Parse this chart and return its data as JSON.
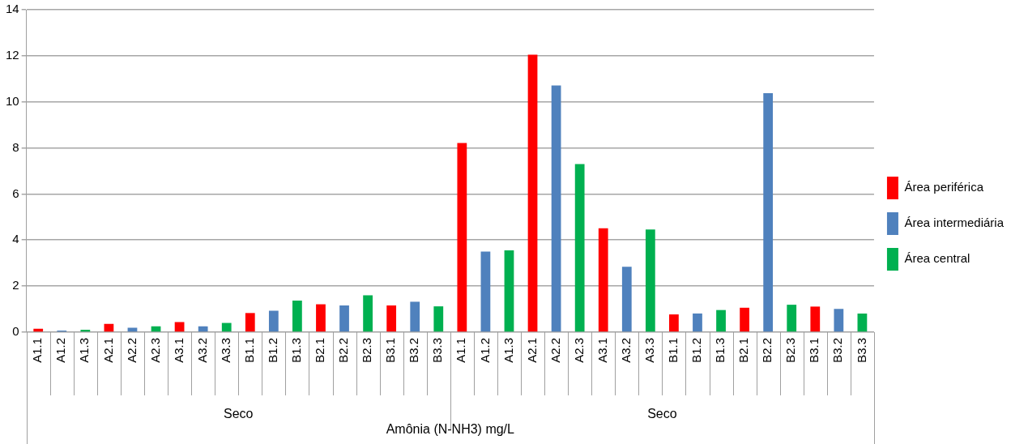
{
  "chart_data": {
    "type": "bar",
    "xlabel": "Amônia (N-NH3) mg/L",
    "categories": [
      "A1.1",
      "A1.2",
      "A1.3",
      "A2.1",
      "A2.2",
      "A2.3",
      "A3.1",
      "A3.2",
      "A3.3",
      "B1.1",
      "B1.2",
      "B1.3",
      "B2.1",
      "B2.2",
      "B2.3",
      "B3.1",
      "B3.2",
      "B3.3",
      "A1.1",
      "A1.2",
      "A1.3",
      "A2.1",
      "A2.2",
      "A2.3",
      "A3.1",
      "A3.2",
      "A3.3",
      "B1.1",
      "B1.2",
      "B1.3",
      "B2.1",
      "B2.2",
      "B2.3",
      "B3.1",
      "B3.2",
      "B3.3"
    ],
    "series": [
      {
        "name": "Área periférica",
        "color": "#ff0000",
        "values": [
          0.15,
          null,
          null,
          0.36,
          null,
          null,
          0.44,
          null,
          null,
          0.83,
          null,
          null,
          1.21,
          null,
          null,
          1.16,
          null,
          null,
          8.21,
          null,
          null,
          12.05,
          null,
          null,
          4.51,
          null,
          null,
          0.77,
          null,
          null,
          1.06,
          null,
          null,
          1.11,
          null,
          null
        ]
      },
      {
        "name": "Área intermediária",
        "color": "#4f81bd",
        "values": [
          null,
          0.05,
          null,
          null,
          0.19,
          null,
          null,
          0.25,
          null,
          null,
          0.93,
          null,
          null,
          1.16,
          null,
          null,
          1.32,
          null,
          null,
          3.5,
          null,
          null,
          10.71,
          null,
          null,
          2.84,
          null,
          null,
          0.81,
          null,
          null,
          10.38,
          null,
          null,
          1.01,
          null
        ]
      },
      {
        "name": "Área central",
        "color": "#00b050",
        "values": [
          null,
          null,
          0.1,
          null,
          null,
          0.25,
          null,
          null,
          0.4,
          null,
          null,
          1.37,
          null,
          null,
          1.6,
          null,
          null,
          1.12,
          null,
          null,
          3.55,
          null,
          null,
          7.3,
          null,
          null,
          4.46,
          null,
          null,
          0.96,
          null,
          null,
          1.19,
          null,
          null,
          0.81
        ]
      }
    ],
    "annotations": [
      "Seco",
      "Seco"
    ],
    "ylim": [
      0,
      14
    ],
    "yticks": [
      0,
      2,
      4,
      6,
      8,
      10,
      12,
      14
    ],
    "grid": "y",
    "legend": "right"
  }
}
